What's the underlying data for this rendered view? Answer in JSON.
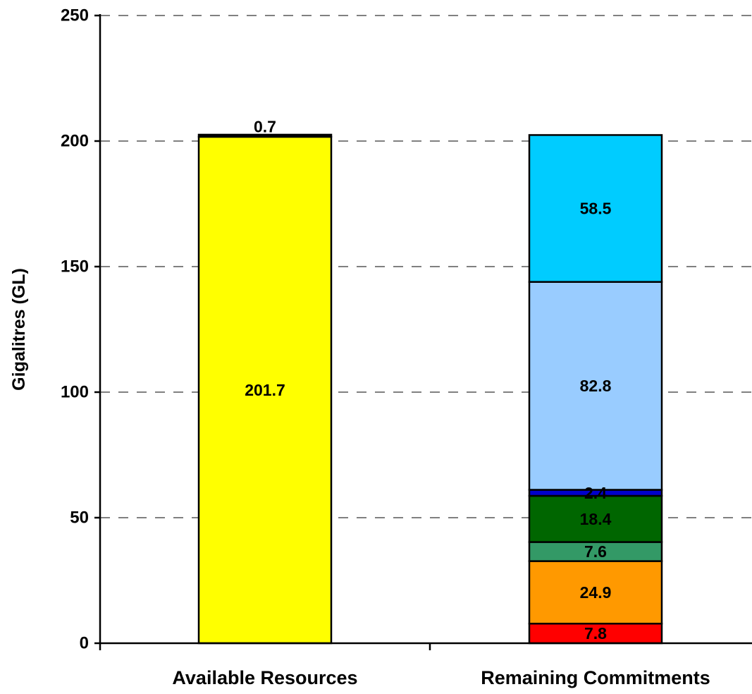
{
  "chart_data": {
    "type": "bar",
    "stacked": true,
    "ylabel": "Gigalitres (GL)",
    "ylim": [
      0,
      250
    ],
    "yticks": [
      "0",
      "50",
      "100",
      "150",
      "200",
      "250"
    ],
    "grid": "dashed horizontal",
    "legend": "none",
    "categories": [
      "Available Resources",
      "Remaining Commitments"
    ],
    "stacks": [
      {
        "category": "Available Resources",
        "segments": [
          {
            "value": 201.7,
            "label": "201.7",
            "color": "#ffff00"
          },
          {
            "value": 0.7,
            "label": "0.7",
            "color": "#000000"
          }
        ]
      },
      {
        "category": "Remaining Commitments",
        "segments": [
          {
            "value": 7.8,
            "label": "7.8",
            "color": "#ff0000"
          },
          {
            "value": 24.9,
            "label": "24.9",
            "color": "#ff9900"
          },
          {
            "value": 7.6,
            "label": "7.6",
            "color": "#339966"
          },
          {
            "value": 18.4,
            "label": "18.4",
            "color": "#006600"
          },
          {
            "value": 2.4,
            "label": "2.4",
            "color": "#0000cc"
          },
          {
            "value": 82.8,
            "label": "82.8",
            "color": "#99ccff"
          },
          {
            "value": 58.5,
            "label": "58.5",
            "color": "#00ccff"
          }
        ]
      }
    ]
  }
}
